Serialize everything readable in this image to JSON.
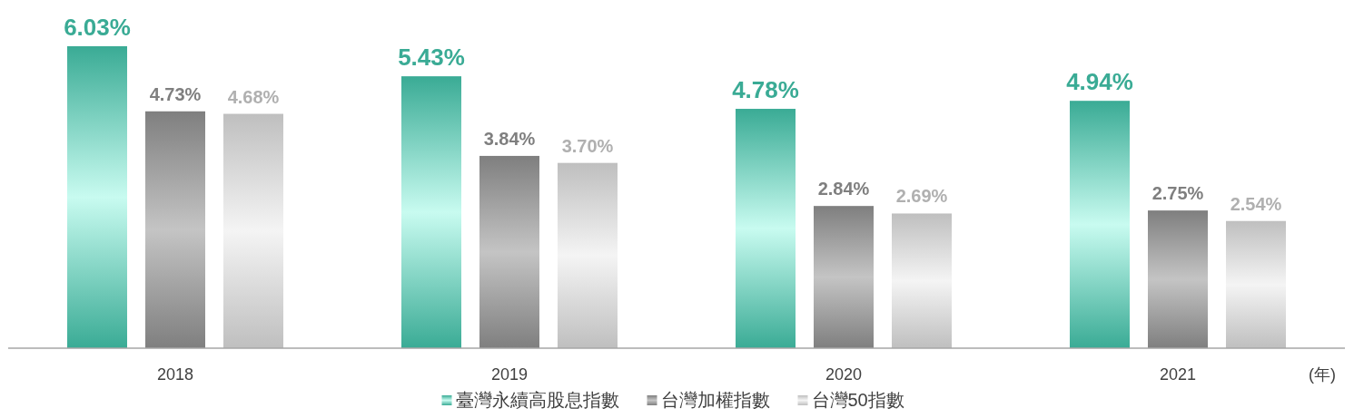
{
  "chart_data": {
    "type": "bar",
    "xlabel": "(年)",
    "categories": [
      "2018",
      "2019",
      "2020",
      "2021"
    ],
    "series": [
      {
        "name": "臺灣永續高股息指數",
        "color": "#3aab95",
        "values": [
          6.03,
          5.43,
          4.78,
          4.94
        ],
        "value_labels": [
          "6.03%",
          "5.43%",
          "4.78%",
          "4.94%"
        ]
      },
      {
        "name": "台灣加權指數",
        "color": "#7f7f7f",
        "values": [
          4.73,
          3.84,
          2.84,
          2.75
        ],
        "value_labels": [
          "4.73%",
          "3.84%",
          "2.84%",
          "2.75%"
        ]
      },
      {
        "name": "台灣50指數",
        "color": "#bfbfbf",
        "values": [
          4.68,
          3.7,
          2.69,
          2.54
        ],
        "value_labels": [
          "4.68%",
          "3.70%",
          "2.69%",
          "2.54%"
        ]
      }
    ],
    "tick_labels": "x",
    "legend": "bottom"
  }
}
